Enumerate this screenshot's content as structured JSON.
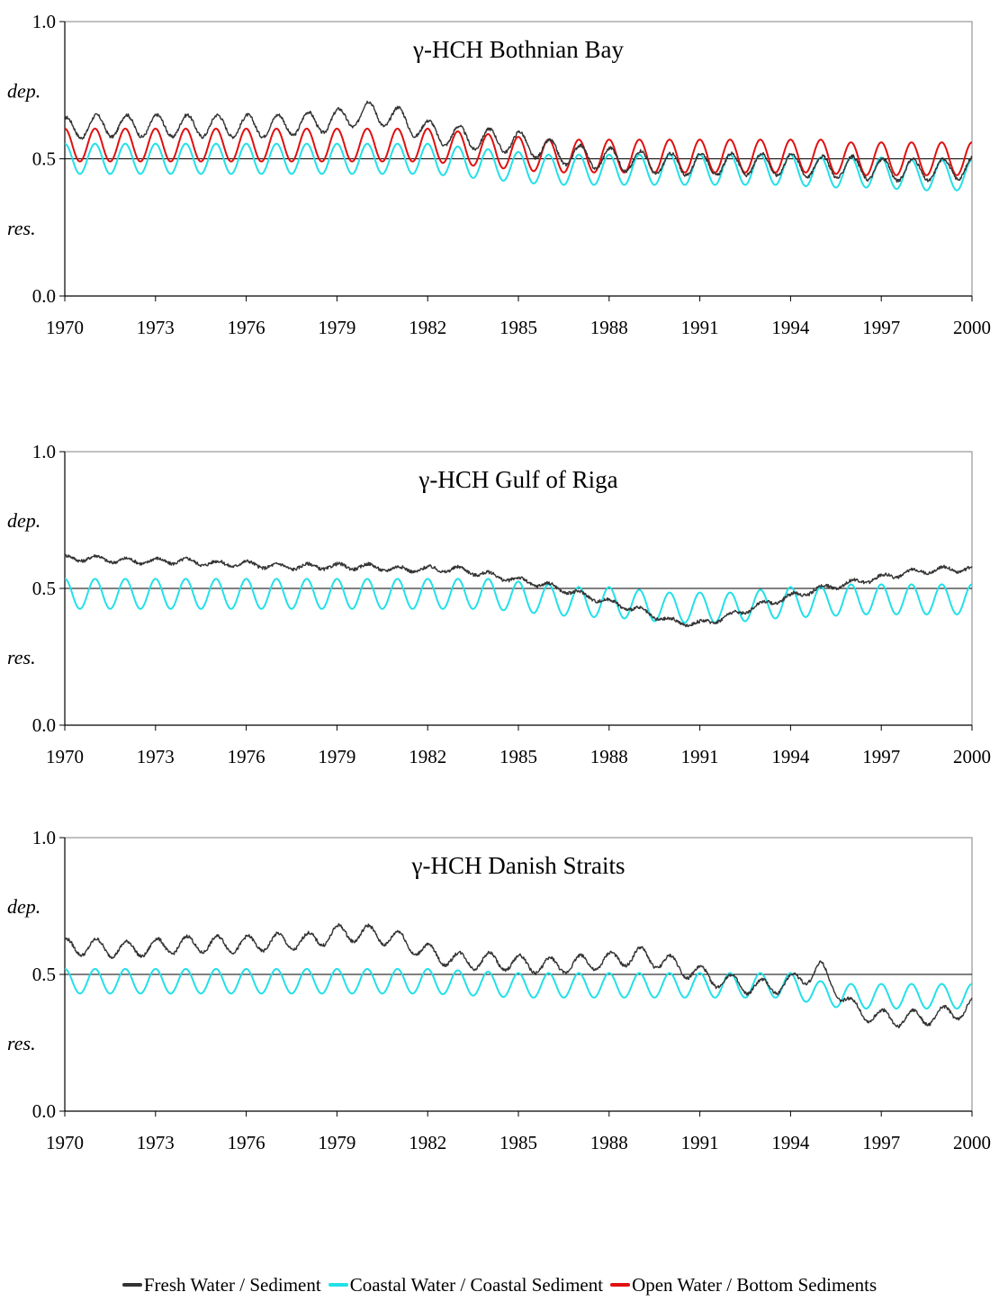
{
  "chart_data": [
    {
      "type": "line",
      "title": "γ-HCH Bothnian Bay",
      "ylim": [
        0.0,
        1.0
      ],
      "xlim": [
        1970,
        2000
      ],
      "yticks": [
        "0.0",
        "0.5",
        "1.0"
      ],
      "xticks": [
        "1970",
        "1973",
        "1976",
        "1979",
        "1982",
        "1985",
        "1988",
        "1991",
        "1994",
        "1997",
        "2000"
      ],
      "upper_label": "dep.",
      "lower_label": "res.",
      "reference_line": 0.5,
      "grid": false,
      "series": [
        {
          "name": "Fresh Water / Sediment",
          "color": "#333333",
          "x": [
            1970,
            1971,
            1972,
            1973,
            1974,
            1975,
            1976,
            1977,
            1978,
            1979,
            1980,
            1981,
            1982,
            1983,
            1984,
            1985,
            1986,
            1987,
            1988,
            1989,
            1990,
            1991,
            1992,
            1993,
            1994,
            1995,
            1996,
            1997,
            1998,
            1999,
            2000
          ],
          "center": [
            0.61,
            0.62,
            0.62,
            0.62,
            0.62,
            0.62,
            0.62,
            0.62,
            0.63,
            0.64,
            0.67,
            0.65,
            0.6,
            0.58,
            0.57,
            0.56,
            0.53,
            0.51,
            0.5,
            0.49,
            0.48,
            0.48,
            0.48,
            0.48,
            0.48,
            0.47,
            0.47,
            0.46,
            0.46,
            0.46,
            0.47
          ],
          "amplitude": 0.04
        },
        {
          "name": "Coastal Water / Coastal Sediment",
          "color": "#22e0e8",
          "x": [
            1970,
            1971,
            1972,
            1973,
            1974,
            1975,
            1976,
            1977,
            1978,
            1979,
            1980,
            1981,
            1982,
            1983,
            1984,
            1985,
            1986,
            1987,
            1988,
            1989,
            1990,
            1991,
            1992,
            1993,
            1994,
            1995,
            1996,
            1997,
            1998,
            1999,
            2000
          ],
          "center": [
            0.5,
            0.5,
            0.5,
            0.5,
            0.5,
            0.5,
            0.5,
            0.5,
            0.5,
            0.5,
            0.5,
            0.5,
            0.5,
            0.49,
            0.48,
            0.47,
            0.46,
            0.46,
            0.46,
            0.46,
            0.46,
            0.46,
            0.46,
            0.46,
            0.46,
            0.45,
            0.45,
            0.45,
            0.44,
            0.44,
            0.44
          ],
          "amplitude": 0.055
        },
        {
          "name": "Open Water / Bottom Sediments",
          "color": "#e01010",
          "x": [
            1970,
            1971,
            1972,
            1973,
            1974,
            1975,
            1976,
            1977,
            1978,
            1979,
            1980,
            1981,
            1982,
            1983,
            1984,
            1985,
            1986,
            1987,
            1988,
            1989,
            1990,
            1991,
            1992,
            1993,
            1994,
            1995,
            1996,
            1997,
            1998,
            1999,
            2000
          ],
          "center": [
            0.55,
            0.55,
            0.55,
            0.55,
            0.55,
            0.55,
            0.55,
            0.55,
            0.55,
            0.55,
            0.55,
            0.55,
            0.55,
            0.54,
            0.53,
            0.52,
            0.51,
            0.51,
            0.51,
            0.51,
            0.51,
            0.51,
            0.51,
            0.51,
            0.51,
            0.51,
            0.5,
            0.5,
            0.5,
            0.5,
            0.5
          ],
          "amplitude": 0.06
        }
      ]
    },
    {
      "type": "line",
      "title": "γ-HCH Gulf of Riga",
      "ylim": [
        0.0,
        1.0
      ],
      "xlim": [
        1970,
        2000
      ],
      "yticks": [
        "0.0",
        "0.5",
        "1.0"
      ],
      "xticks": [
        "1970",
        "1973",
        "1976",
        "1979",
        "1982",
        "1985",
        "1988",
        "1991",
        "1994",
        "1997",
        "2000"
      ],
      "upper_label": "dep.",
      "lower_label": "res.",
      "reference_line": 0.5,
      "grid": false,
      "series": [
        {
          "name": "Fresh Water / Sediment",
          "color": "#333333",
          "x": [
            1970,
            1971,
            1972,
            1973,
            1974,
            1975,
            1976,
            1977,
            1978,
            1979,
            1980,
            1981,
            1982,
            1983,
            1984,
            1985,
            1986,
            1987,
            1988,
            1989,
            1990,
            1991,
            1992,
            1993,
            1994,
            1995,
            1996,
            1997,
            1998,
            1999,
            2000
          ],
          "center": [
            0.61,
            0.61,
            0.6,
            0.6,
            0.6,
            0.59,
            0.59,
            0.58,
            0.58,
            0.58,
            0.58,
            0.57,
            0.57,
            0.57,
            0.55,
            0.53,
            0.51,
            0.48,
            0.45,
            0.42,
            0.38,
            0.37,
            0.4,
            0.44,
            0.47,
            0.5,
            0.52,
            0.54,
            0.56,
            0.57,
            0.57
          ],
          "amplitude": 0.01
        },
        {
          "name": "Coastal Water / Coastal Sediment",
          "color": "#22e0e8",
          "x": [
            1970,
            1971,
            1972,
            1973,
            1974,
            1975,
            1976,
            1977,
            1978,
            1979,
            1980,
            1981,
            1982,
            1983,
            1984,
            1985,
            1986,
            1987,
            1988,
            1989,
            1990,
            1991,
            1992,
            1993,
            1994,
            1995,
            1996,
            1997,
            1998,
            1999,
            2000
          ],
          "center": [
            0.48,
            0.48,
            0.48,
            0.48,
            0.48,
            0.48,
            0.48,
            0.48,
            0.48,
            0.48,
            0.48,
            0.48,
            0.48,
            0.48,
            0.48,
            0.47,
            0.46,
            0.45,
            0.45,
            0.44,
            0.43,
            0.43,
            0.43,
            0.44,
            0.45,
            0.45,
            0.46,
            0.46,
            0.46,
            0.46,
            0.46
          ],
          "amplitude": 0.055
        }
      ]
    },
    {
      "type": "line",
      "title": "γ-HCH Danish Straits",
      "ylim": [
        0.0,
        1.0
      ],
      "xlim": [
        1970,
        2000
      ],
      "yticks": [
        "0.0",
        "0.5",
        "1.0"
      ],
      "xticks": [
        "1970",
        "1973",
        "1976",
        "1979",
        "1982",
        "1985",
        "1988",
        "1991",
        "1994",
        "1997",
        "2000"
      ],
      "upper_label": "dep.",
      "lower_label": "res.",
      "reference_line": 0.5,
      "grid": false,
      "series": [
        {
          "name": "Fresh Water / Sediment",
          "color": "#333333",
          "x": [
            1970,
            1971,
            1972,
            1973,
            1974,
            1975,
            1976,
            1977,
            1978,
            1979,
            1980,
            1981,
            1982,
            1983,
            1984,
            1985,
            1986,
            1987,
            1988,
            1989,
            1990,
            1991,
            1992,
            1993,
            1994,
            1995,
            1996,
            1997,
            1998,
            1999,
            2000
          ],
          "center": [
            0.6,
            0.6,
            0.59,
            0.6,
            0.61,
            0.61,
            0.61,
            0.62,
            0.62,
            0.65,
            0.65,
            0.63,
            0.58,
            0.55,
            0.55,
            0.54,
            0.53,
            0.54,
            0.55,
            0.57,
            0.54,
            0.5,
            0.47,
            0.45,
            0.47,
            0.52,
            0.38,
            0.34,
            0.34,
            0.35,
            0.38
          ],
          "amplitude": 0.03
        },
        {
          "name": "Coastal Water / Coastal Sediment",
          "color": "#22e0e8",
          "x": [
            1970,
            1971,
            1972,
            1973,
            1974,
            1975,
            1976,
            1977,
            1978,
            1979,
            1980,
            1981,
            1982,
            1983,
            1984,
            1985,
            1986,
            1987,
            1988,
            1989,
            1990,
            1991,
            1992,
            1993,
            1994,
            1995,
            1996,
            1997,
            1998,
            1999,
            2000
          ],
          "center": [
            0.475,
            0.475,
            0.475,
            0.475,
            0.475,
            0.475,
            0.475,
            0.475,
            0.475,
            0.475,
            0.475,
            0.475,
            0.475,
            0.47,
            0.465,
            0.46,
            0.46,
            0.46,
            0.46,
            0.46,
            0.46,
            0.46,
            0.46,
            0.46,
            0.46,
            0.43,
            0.42,
            0.42,
            0.42,
            0.42,
            0.42
          ],
          "amplitude": 0.045
        }
      ]
    }
  ],
  "legend": {
    "items": [
      {
        "label": "Fresh Water / Sediment",
        "color": "#333333"
      },
      {
        "label": "Coastal Water / Coastal Sediment",
        "color": "#22e0e8"
      },
      {
        "label": "Open Water / Bottom Sediments",
        "color": "#e01010"
      }
    ]
  }
}
